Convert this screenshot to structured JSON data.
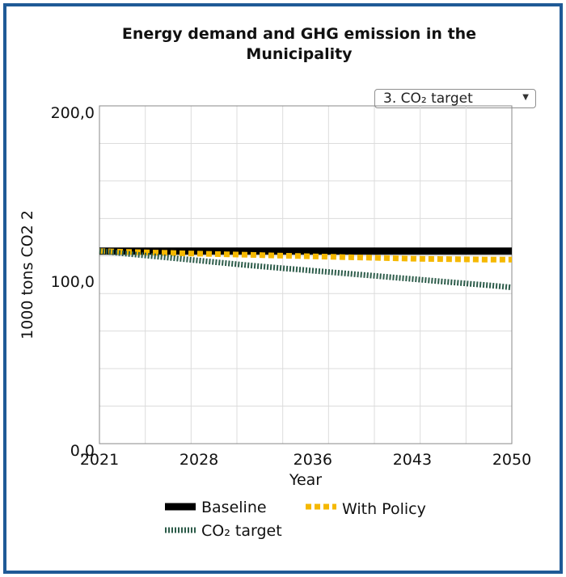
{
  "chart_data": {
    "type": "line",
    "title": "Energy demand and GHG emission in the Municipality",
    "xlabel": "Year",
    "ylabel": "1000 tons CO2 2",
    "x": [
      2021,
      2022,
      2023,
      2024,
      2025,
      2026,
      2027,
      2028,
      2029,
      2030,
      2031,
      2032,
      2033,
      2034,
      2035,
      2036,
      2037,
      2038,
      2039,
      2040,
      2041,
      2042,
      2043,
      2044,
      2045,
      2046,
      2047,
      2048,
      2049,
      2050
    ],
    "xlim": [
      2021,
      2050
    ],
    "ylim": [
      0,
      200
    ],
    "x_ticks": [
      "2021",
      "2028",
      "2036",
      "2043",
      "2050"
    ],
    "y_ticks": [
      "0,0",
      "100,0",
      "200,0"
    ],
    "grid": true,
    "legend_position": "bottom",
    "series": [
      {
        "name": "Baseline",
        "color": "#000000",
        "style": "solid",
        "values": [
          114,
          114,
          114,
          114,
          114,
          114,
          114,
          114,
          114,
          114,
          114,
          114,
          114,
          114,
          114,
          114,
          114,
          114,
          114,
          114,
          114,
          114,
          114,
          114,
          114,
          114,
          114,
          114,
          114,
          114
        ]
      },
      {
        "name": "With Policy",
        "color": "#f5b800",
        "style": "dashed",
        "values": [
          114,
          113.8,
          113.5,
          113.3,
          113.1,
          112.9,
          112.7,
          112.5,
          112.3,
          112.1,
          111.9,
          111.7,
          111.5,
          111.3,
          111.1,
          110.9,
          110.7,
          110.5,
          110.3,
          110.1,
          109.9,
          109.7,
          109.5,
          109.4,
          109.3,
          109.2,
          109.1,
          109,
          109,
          109
        ]
      },
      {
        "name": "CO₂ target",
        "color": "#2d5c4a",
        "style": "dotted",
        "values": [
          114,
          113.2,
          112.4,
          111.6,
          110.8,
          110,
          109.2,
          108.4,
          107.6,
          106.8,
          106,
          105.2,
          104.5,
          103.8,
          103.1,
          102.4,
          101.7,
          101,
          100.3,
          99.6,
          98.9,
          98.2,
          97.5,
          96.8,
          96.1,
          95.4,
          94.7,
          94,
          93.3,
          92.5
        ]
      }
    ]
  },
  "dropdown": {
    "selected": "3. CO₂ target",
    "arrow": "▼"
  },
  "legend": {
    "baseline": "Baseline",
    "with_policy": "With Policy",
    "co2_target": "CO₂ target"
  }
}
